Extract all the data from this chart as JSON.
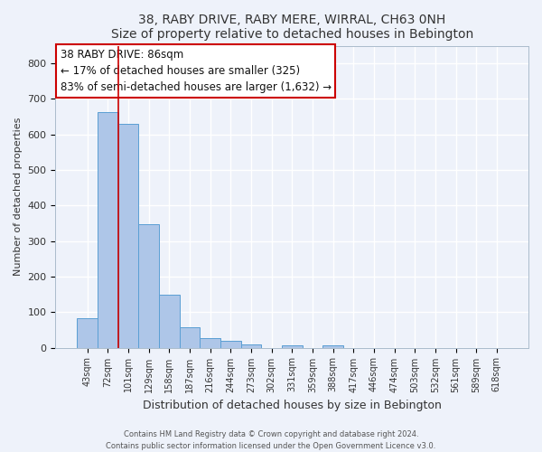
{
  "title": "38, RABY DRIVE, RABY MERE, WIRRAL, CH63 0NH",
  "subtitle": "Size of property relative to detached houses in Bebington",
  "xlabel": "Distribution of detached houses by size in Bebington",
  "ylabel": "Number of detached properties",
  "bar_labels": [
    "43sqm",
    "72sqm",
    "101sqm",
    "129sqm",
    "158sqm",
    "187sqm",
    "216sqm",
    "244sqm",
    "273sqm",
    "302sqm",
    "331sqm",
    "359sqm",
    "388sqm",
    "417sqm",
    "446sqm",
    "474sqm",
    "503sqm",
    "532sqm",
    "561sqm",
    "589sqm",
    "618sqm"
  ],
  "bar_values": [
    82,
    663,
    630,
    348,
    148,
    57,
    27,
    18,
    8,
    0,
    7,
    0,
    7,
    0,
    0,
    0,
    0,
    0,
    0,
    0,
    0
  ],
  "bar_color": "#aec6e8",
  "bar_edge_color": "#5a9fd4",
  "vline_color": "#cc0000",
  "vline_x": 1.5,
  "ylim": [
    0,
    850
  ],
  "yticks": [
    0,
    100,
    200,
    300,
    400,
    500,
    600,
    700,
    800
  ],
  "annotation_line1": "38 RABY DRIVE: 86sqm",
  "annotation_line2": "← 17% of detached houses are smaller (325)",
  "annotation_line3": "83% of semi-detached houses are larger (1,632) →",
  "background_color": "#eef2fa",
  "grid_color": "#ffffff",
  "footer_line1": "Contains HM Land Registry data © Crown copyright and database right 2024.",
  "footer_line2": "Contains public sector information licensed under the Open Government Licence v3.0.",
  "title_fontsize": 10,
  "subtitle_fontsize": 9,
  "xlabel_fontsize": 9,
  "ylabel_fontsize": 8,
  "tick_fontsize": 7,
  "annot_fontsize": 8.5,
  "footer_fontsize": 6
}
